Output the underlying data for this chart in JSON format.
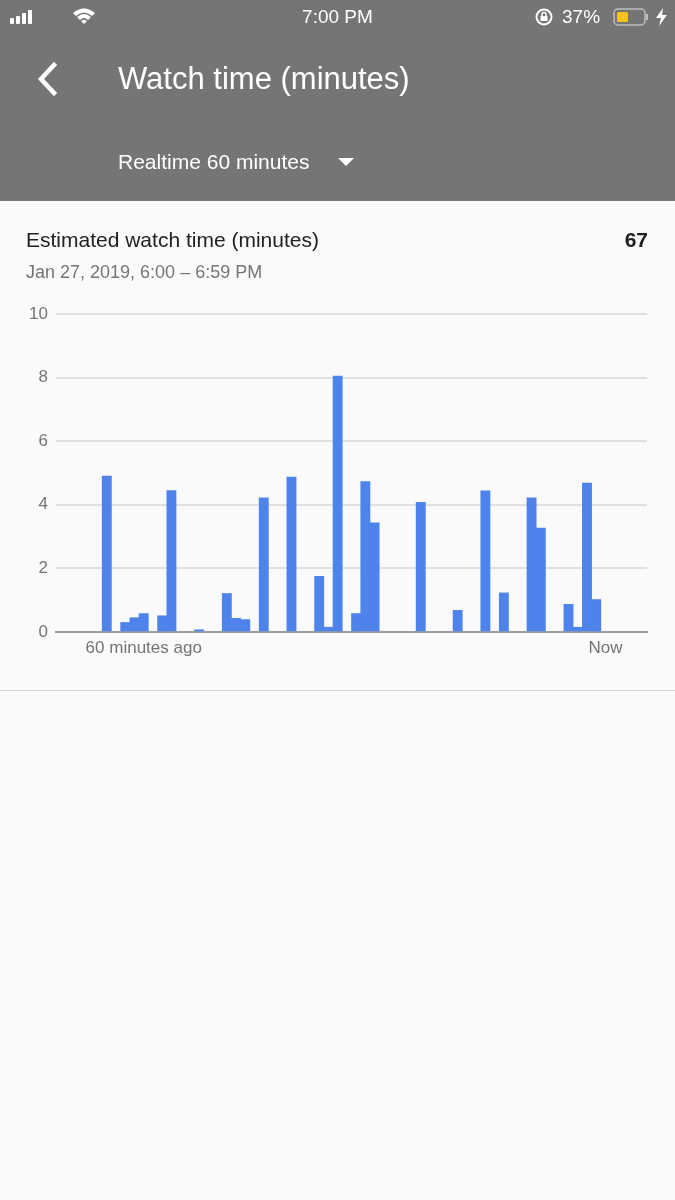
{
  "chart_data": {
    "type": "bar",
    "title": "Estimated watch time (minutes)",
    "subtitle": "Jan 27, 2019, 6:00 – 6:59 PM",
    "annotations": [
      "7:00 PM",
      "37%",
      "Watch time (minutes)",
      "Realtime 60 minutes",
      "67"
    ],
    "categories": [
      null,
      null,
      null,
      null,
      null,
      null,
      null,
      null,
      null,
      "60 minutes ago",
      null,
      null,
      null,
      null,
      null,
      null,
      null,
      null,
      null,
      null,
      null,
      null,
      null,
      null,
      null,
      null,
      null,
      null,
      null,
      null,
      null,
      null,
      null,
      null,
      null,
      null,
      null,
      null,
      null,
      null,
      null,
      null,
      null,
      null,
      null,
      null,
      null,
      null,
      null,
      null,
      null,
      null,
      null,
      null,
      null,
      null,
      null,
      null,
      null,
      "Now",
      null,
      null,
      null,
      null
    ],
    "values": [
      null,
      null,
      null,
      null,
      null,
      4.9,
      null,
      0.3,
      0.45,
      0.58,
      null,
      0.51,
      4.45,
      null,
      null,
      0.07,
      null,
      null,
      1.21,
      0.43,
      0.39,
      null,
      4.22,
      null,
      null,
      4.87,
      null,
      null,
      1.75,
      0.15,
      8.05,
      null,
      0.58,
      4.73,
      3.43,
      null,
      null,
      null,
      null,
      4.08,
      null,
      null,
      null,
      0.68,
      null,
      null,
      4.44,
      null,
      1.23,
      null,
      null,
      4.22,
      3.27,
      null,
      null,
      0.87,
      0.15,
      4.68,
      1.02,
      null,
      null,
      null,
      null,
      null
    ],
    "color": "#4f83ec",
    "ylim": [
      0,
      10
    ],
    "yticks": [
      0,
      2,
      4,
      6,
      8,
      10
    ],
    "grid": "y"
  }
}
